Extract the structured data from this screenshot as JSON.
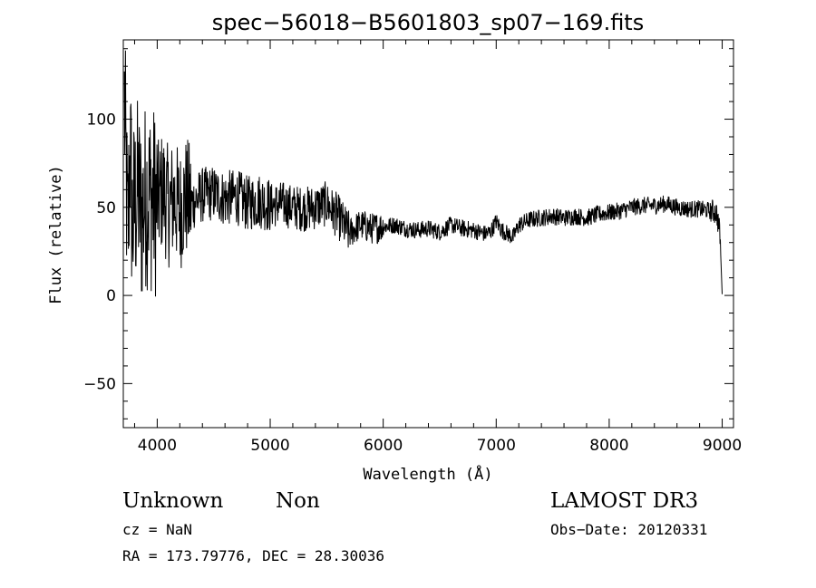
{
  "chart_data": {
    "type": "line",
    "title": "spec−56018−B5601803_sp07−169.fits",
    "xlabel": "Wavelength (Å)",
    "ylabel": "Flux (relative)",
    "xlim": [
      3700,
      9100
    ],
    "ylim": [
      -75,
      145
    ],
    "xticks": [
      4000,
      5000,
      6000,
      7000,
      8000,
      9000
    ],
    "yticks": [
      -50,
      0,
      50,
      100
    ],
    "ytick_labels": [
      "−50",
      "0",
      "50",
      "100"
    ],
    "series": [
      {
        "x": [
          3710,
          3740,
          3760,
          3780,
          3800,
          3830,
          3860,
          3900,
          3950,
          4000,
          4050,
          4100,
          4150,
          4200,
          4250,
          4300,
          4400,
          4500,
          4600,
          4700,
          4800,
          4900,
          5000,
          5100,
          5200,
          5300,
          5400,
          5500,
          5550,
          5600,
          5650,
          5700,
          5750,
          5800,
          5900,
          6000,
          6100,
          6200,
          6300,
          6400,
          6500,
          6600,
          6700,
          6800,
          6900,
          6950,
          7000,
          7050,
          7100,
          7150,
          7200,
          7300,
          7400,
          7500,
          7600,
          7700,
          7800,
          7900,
          8000,
          8100,
          8200,
          8300,
          8400,
          8500,
          8600,
          8700,
          8800,
          8900,
          8950,
          8980,
          9000
        ],
        "y": [
          110,
          30,
          85,
          40,
          50,
          60,
          45,
          58,
          55,
          52,
          60,
          50,
          55,
          48,
          56,
          52,
          57,
          58,
          55,
          56,
          52,
          54,
          51,
          52,
          50,
          49,
          50,
          52,
          48,
          45,
          40,
          35,
          38,
          40,
          38,
          39,
          40,
          38,
          37,
          38,
          36,
          40,
          38,
          37,
          35,
          36,
          42,
          37,
          35,
          33,
          40,
          43,
          44,
          45,
          44,
          45,
          44,
          46,
          47,
          48,
          50,
          51,
          51,
          52,
          50,
          49,
          49,
          48,
          47,
          35,
          0
        ]
      }
    ]
  },
  "info": {
    "class": "Unknown",
    "subclass": "Non",
    "cz": "cz = NaN",
    "radec": "RA = 173.79776, DEC =  28.30036",
    "survey": "LAMOST DR3",
    "obsdate": "Obs−Date: 20120331"
  }
}
